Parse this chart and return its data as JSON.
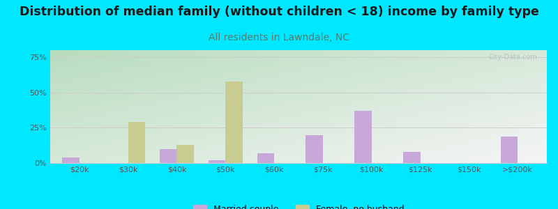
{
  "title": "Distribution of median family (without children < 18) income by family type",
  "subtitle": "All residents in Lawndale, NC",
  "categories": [
    "$20k",
    "$30k",
    "$40k",
    "$50k",
    "$60k",
    "$75k",
    "$100k",
    "$125k",
    "$150k",
    ">$200k"
  ],
  "married_couple": [
    4,
    0,
    10,
    2,
    7,
    20,
    37,
    8,
    0,
    19
  ],
  "female_no_husband": [
    0,
    29,
    13,
    58,
    0,
    0,
    0,
    0,
    0,
    0
  ],
  "married_color": "#c8a8d8",
  "female_color": "#c8cc90",
  "background_outer": "#00e8ff",
  "grad_top_left": "#b8ddbe",
  "grad_bottom_right": "#f5f5f5",
  "title_color": "#1a1a1a",
  "subtitle_color": "#5a7a6a",
  "axis_color": "#555555",
  "grid_color": "#cccccc",
  "yticks": [
    0,
    25,
    50,
    75
  ],
  "ylim": [
    0,
    80
  ],
  "bar_width": 0.35,
  "title_fontsize": 12.5,
  "subtitle_fontsize": 10,
  "legend_fontsize": 9,
  "tick_fontsize": 8
}
